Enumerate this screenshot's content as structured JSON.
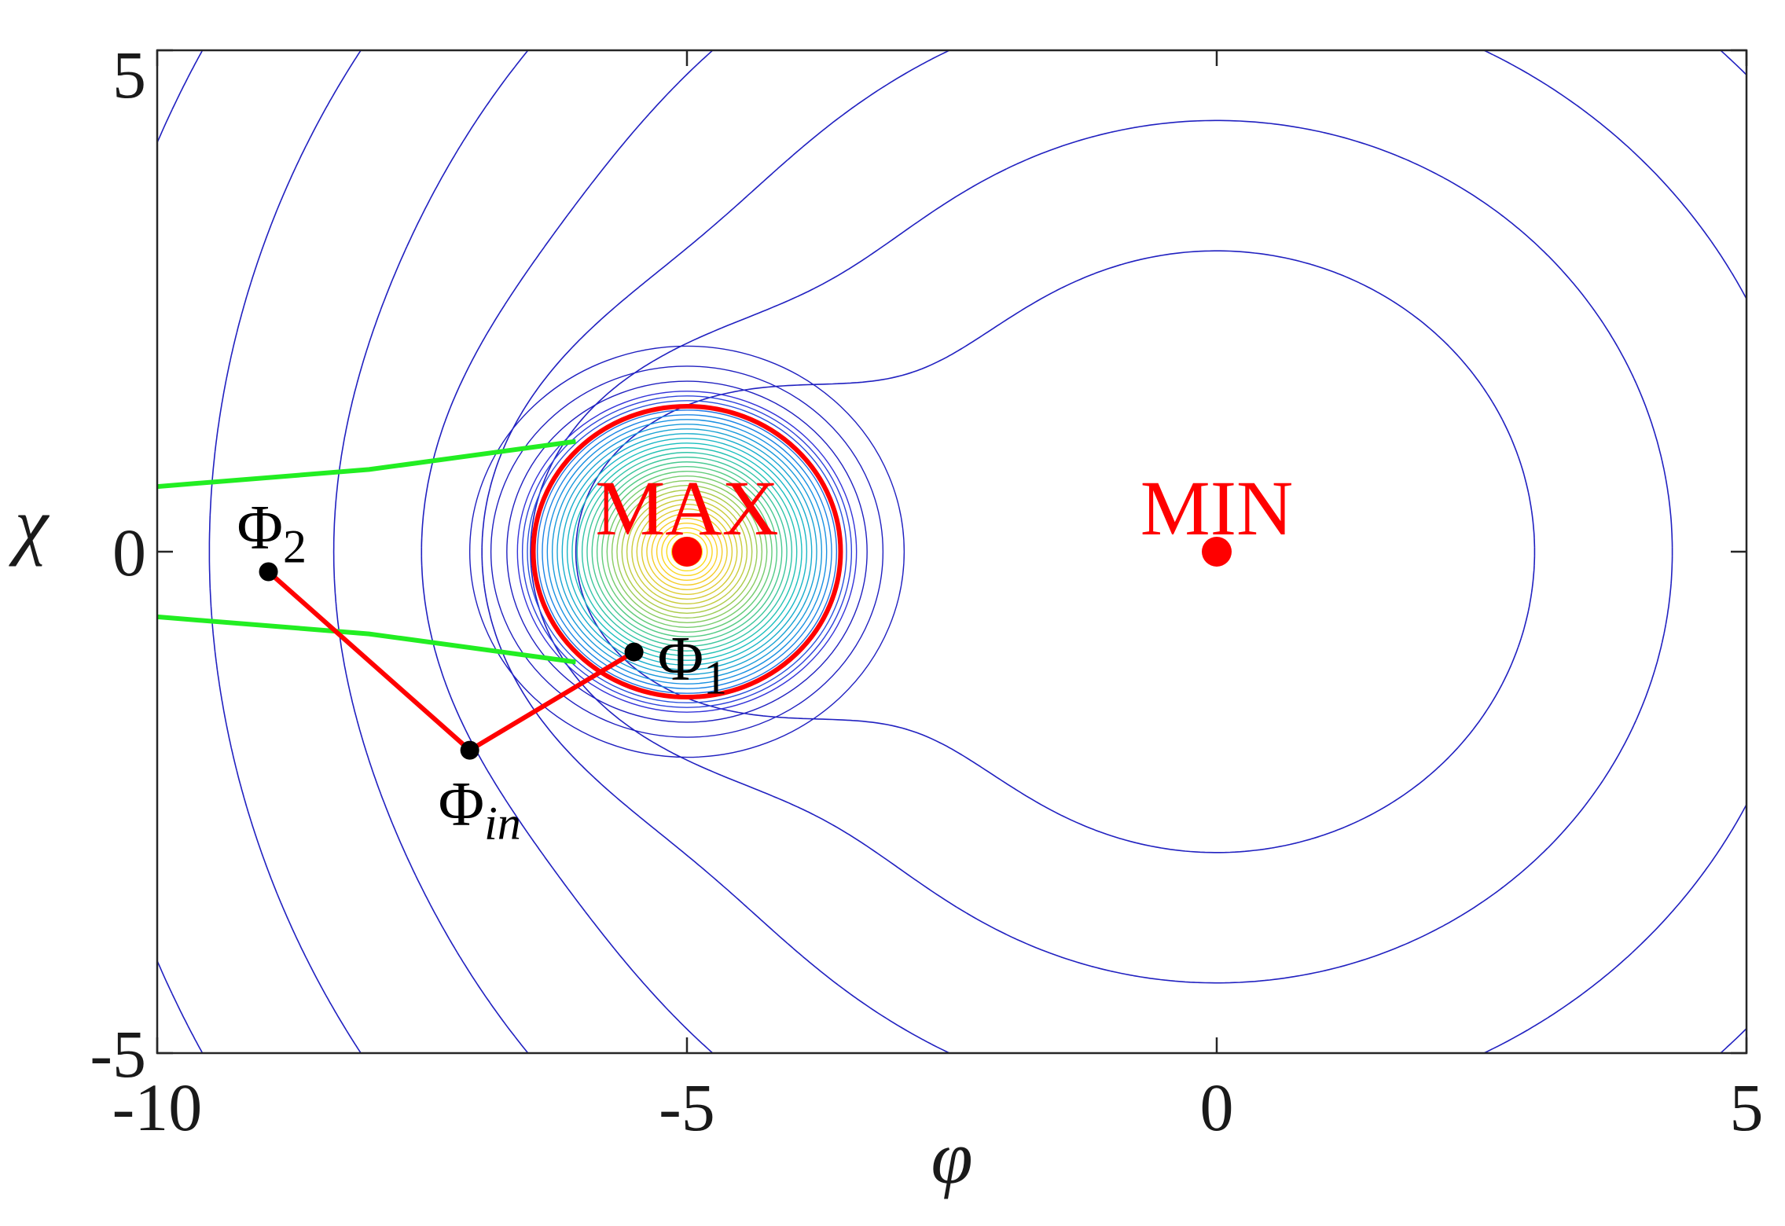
{
  "chart_data": {
    "type": "contour",
    "title": "",
    "xlabel": "φ",
    "ylabel": "χ",
    "xlim": [
      -10,
      5
    ],
    "ylim": [
      -5,
      5
    ],
    "xticks": [
      -10,
      -5,
      0,
      5
    ],
    "xtick_labels": [
      "-10",
      "-5",
      "0",
      "5"
    ],
    "yticks": [
      -5,
      0,
      5
    ],
    "ytick_labels": [
      "-5",
      "0",
      "5"
    ],
    "grid": false,
    "legend": "none",
    "colors": {
      "contour_outer": "#2020c0",
      "circle": "#ff0000",
      "green_lines": "#22ee22",
      "path": "#ff0000",
      "points": "#000000",
      "extrema": "#ff0000"
    },
    "extrema": [
      {
        "label": "MAX",
        "x": -5,
        "y": 0
      },
      {
        "label": "MIN",
        "x": 0,
        "y": 0
      }
    ],
    "circle": {
      "cx": -5,
      "cy": 0,
      "r": 1.45
    },
    "green_lines": [
      [
        [
          -10,
          0.65
        ],
        [
          -8,
          0.82
        ],
        [
          -6.05,
          1.1
        ]
      ],
      [
        [
          -10,
          -0.65
        ],
        [
          -8,
          -0.82
        ],
        [
          -6.05,
          -1.1
        ]
      ]
    ],
    "path": [
      [
        -8.95,
        -0.2
      ],
      [
        -7.05,
        -1.98
      ],
      [
        -5.5,
        -1.0
      ]
    ],
    "points": [
      {
        "label": "Φ",
        "sub": "2",
        "x": -8.95,
        "y": -0.2
      },
      {
        "label": "Φ",
        "sub": "in",
        "x": -7.05,
        "y": -1.98
      },
      {
        "label": "Φ",
        "sub": "1",
        "x": -5.5,
        "y": -1.0
      }
    ]
  }
}
